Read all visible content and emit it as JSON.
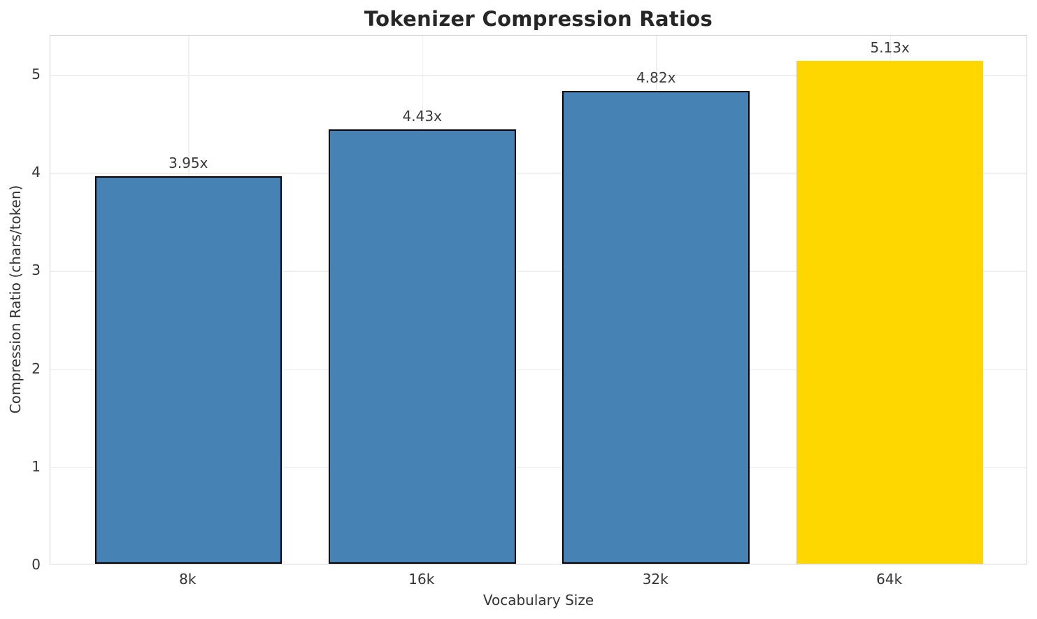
{
  "chart_data": {
    "type": "bar",
    "title": "Tokenizer Compression Ratios",
    "xlabel": "Vocabulary Size",
    "ylabel": "Compression Ratio (chars/token)",
    "categories": [
      "8k",
      "16k",
      "32k",
      "64k"
    ],
    "values": [
      3.95,
      4.43,
      4.82,
      5.13
    ],
    "bar_labels": [
      "3.95x",
      "4.43x",
      "4.82x",
      "5.13x"
    ],
    "bar_colors": [
      "#4682b4",
      "#4682b4",
      "#4682b4",
      "#ffd700"
    ],
    "bar_edge_colors": [
      "#000000",
      "#000000",
      "#000000",
      "none"
    ],
    "yticks": [
      "0",
      "1",
      "2",
      "3",
      "4",
      "5"
    ],
    "ytick_values": [
      0,
      1,
      2,
      3,
      4,
      5
    ],
    "ylim": [
      0,
      5.4
    ],
    "bar_width_units": 0.8,
    "grid": true,
    "legend": null
  },
  "colors": {
    "bar_blue": "#4682b4",
    "bar_gold": "#ffd700",
    "bar_edge": "#000000",
    "grid": "#efefef",
    "spine": "#d4d4d4",
    "tick_text": "#333333",
    "title_text": "#262626",
    "background": "#ffffff"
  }
}
